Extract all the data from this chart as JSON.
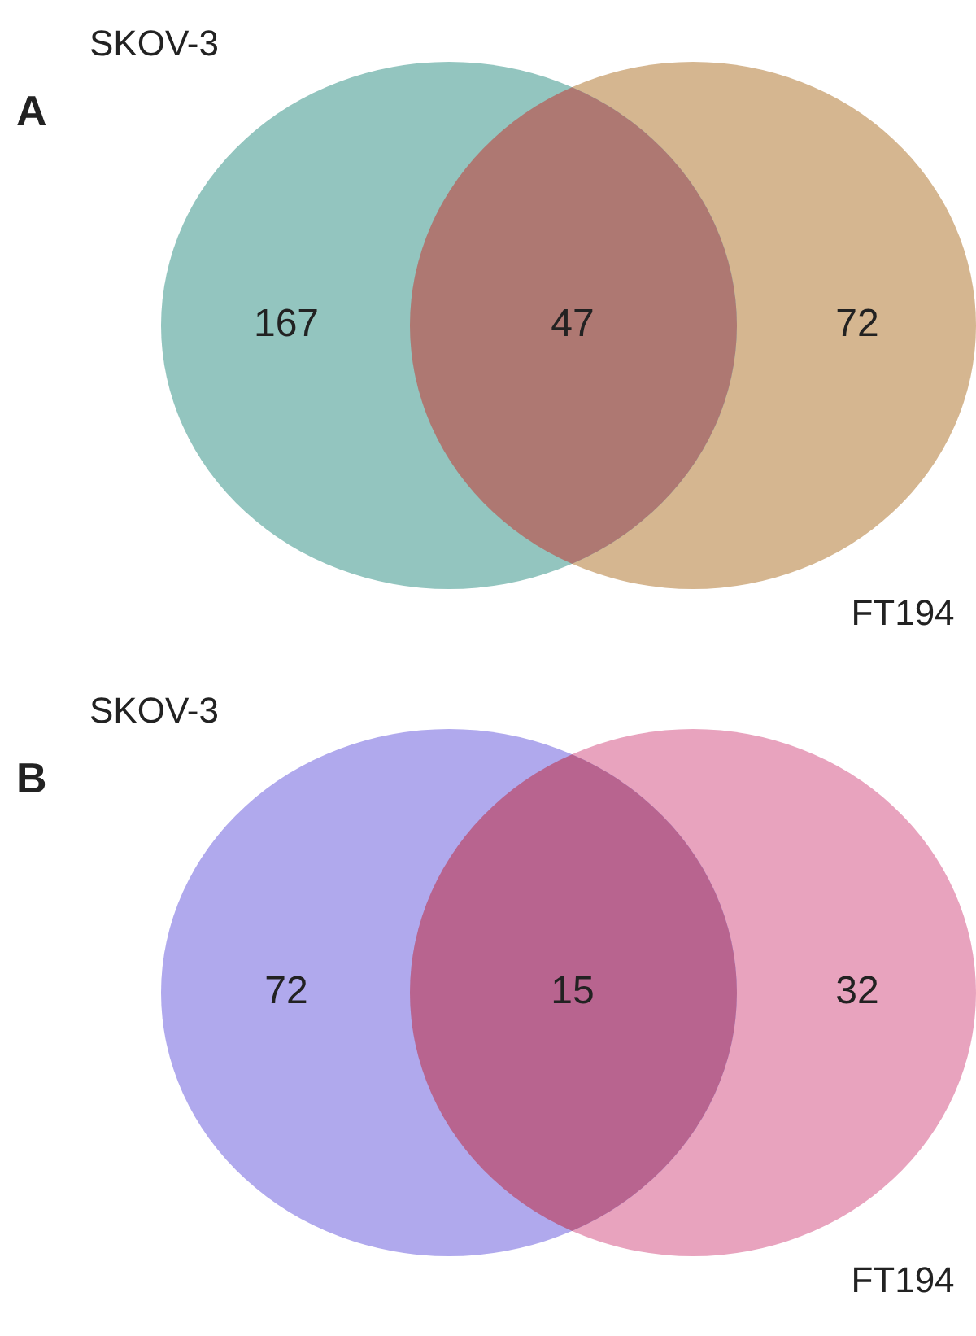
{
  "chart_data": [
    {
      "type": "other",
      "title": "A",
      "annotations": [
        "SKOV-3",
        "FT194"
      ],
      "categories": [
        null,
        null,
        null
      ],
      "values": [
        167,
        47,
        72
      ],
      "colors": [
        "#93c5bf",
        "#ae7872",
        "#d5b690"
      ],
      "data_labels": true
    },
    {
      "type": "other",
      "title": "B",
      "annotations": [
        "SKOV-3",
        "FT194"
      ],
      "categories": [
        null,
        null,
        null
      ],
      "values": [
        72,
        15,
        32
      ],
      "colors": [
        "#b0a9ed",
        "#b8648f",
        "#e8a3be"
      ],
      "data_labels": true
    }
  ]
}
